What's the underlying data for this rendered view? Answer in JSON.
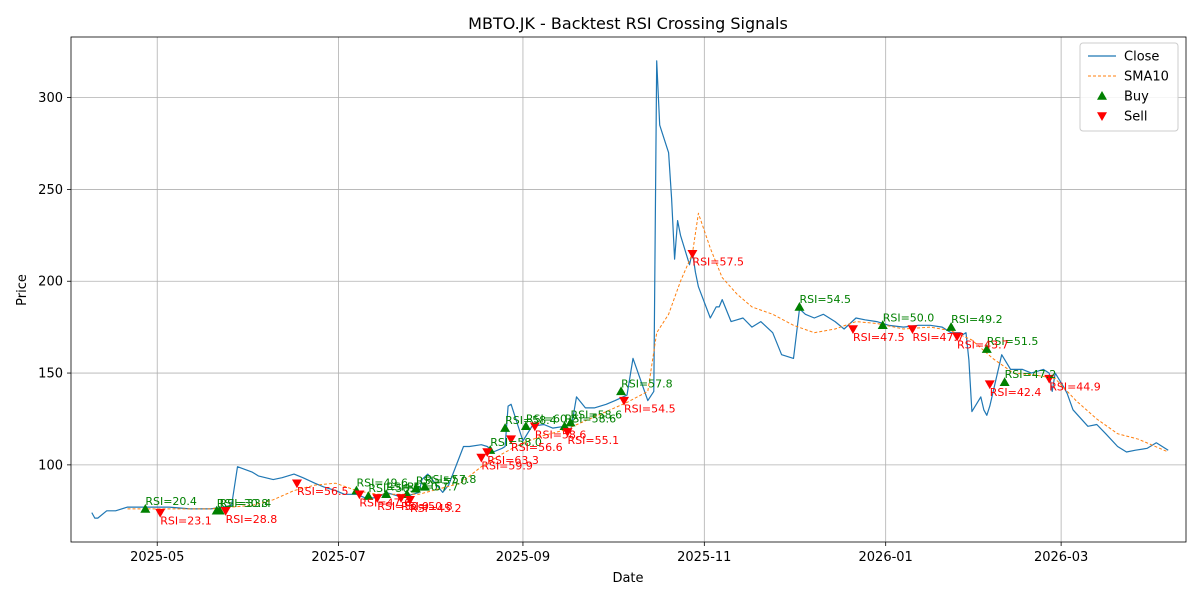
{
  "chart_data": {
    "type": "line",
    "title": "MBTO.JK - Backtest RSI Crossing Signals",
    "xlabel": "Date",
    "ylabel": "Price",
    "xlim": [
      "2025-04-02",
      "2026-04-12"
    ],
    "ylim": [
      58,
      333
    ],
    "grid": true,
    "legend_position": "top-right",
    "x_ticks": [
      "2025-05-01",
      "2025-07-01",
      "2025-09-01",
      "2025-11-01",
      "2026-01-01",
      "2026-03-01"
    ],
    "x_tick_labels": [
      "2025-05",
      "2025-07",
      "2025-09",
      "2025-11",
      "2026-01",
      "2026-03"
    ],
    "y_ticks": [
      100,
      150,
      200,
      250,
      300
    ],
    "y_tick_labels": [
      "100",
      "150",
      "200",
      "250",
      "300"
    ],
    "colors": {
      "close": "#1f77b4",
      "sma": "#ff7f0e",
      "buy": "#008000",
      "sell": "#ff0000"
    },
    "series": [
      {
        "name": "Close",
        "x": [
          "2025-04-09",
          "2025-04-10",
          "2025-04-11",
          "2025-04-14",
          "2025-04-17",
          "2025-04-21",
          "2025-04-28",
          "2025-05-05",
          "2025-05-12",
          "2025-05-19",
          "2025-05-23",
          "2025-05-26",
          "2025-05-28",
          "2025-06-02",
          "2025-06-04",
          "2025-06-09",
          "2025-06-12",
          "2025-06-16",
          "2025-06-19",
          "2025-06-23",
          "2025-06-26",
          "2025-06-30",
          "2025-07-03",
          "2025-07-07",
          "2025-07-10",
          "2025-07-14",
          "2025-07-17",
          "2025-07-21",
          "2025-07-24",
          "2025-07-28",
          "2025-07-29",
          "2025-07-31",
          "2025-08-04",
          "2025-08-05",
          "2025-08-07",
          "2025-08-12",
          "2025-08-14",
          "2025-08-18",
          "2025-08-20",
          "2025-08-22",
          "2025-08-25",
          "2025-08-26",
          "2025-08-27",
          "2025-08-28",
          "2025-09-01",
          "2025-09-04",
          "2025-09-08",
          "2025-09-11",
          "2025-09-15",
          "2025-09-17",
          "2025-09-19",
          "2025-09-22",
          "2025-09-25",
          "2025-09-29",
          "2025-10-02",
          "2025-10-06",
          "2025-10-08",
          "2025-10-13",
          "2025-10-15",
          "2025-10-16",
          "2025-10-17",
          "2025-10-20",
          "2025-10-21",
          "2025-10-22",
          "2025-10-23",
          "2025-10-24",
          "2025-10-27",
          "2025-10-28",
          "2025-10-29",
          "2025-10-30",
          "2025-11-03",
          "2025-11-05",
          "2025-11-06",
          "2025-11-07",
          "2025-11-10",
          "2025-11-12",
          "2025-11-14",
          "2025-11-17",
          "2025-11-20",
          "2025-11-24",
          "2025-11-27",
          "2025-12-01",
          "2025-12-03",
          "2025-12-05",
          "2025-12-08",
          "2025-12-11",
          "2025-12-15",
          "2025-12-18",
          "2025-12-22",
          "2025-12-25",
          "2025-12-29",
          "2026-01-02",
          "2026-01-07",
          "2026-01-12",
          "2026-01-16",
          "2026-01-20",
          "2026-01-23",
          "2026-01-26",
          "2026-01-27",
          "2026-01-28",
          "2026-01-29",
          "2026-01-30",
          "2026-02-02",
          "2026-02-03",
          "2026-02-04",
          "2026-02-05",
          "2026-02-09",
          "2026-02-12",
          "2026-02-16",
          "2026-02-19",
          "2026-02-23",
          "2026-02-25",
          "2026-02-26",
          "2026-02-27",
          "2026-03-02",
          "2026-03-03",
          "2026-03-05",
          "2026-03-10",
          "2026-03-13",
          "2026-03-16",
          "2026-03-20",
          "2026-03-23",
          "2026-03-26",
          "2026-03-30",
          "2026-04-02",
          "2026-04-06"
        ],
        "values": [
          74,
          71,
          71,
          75,
          75,
          77,
          77,
          77,
          76,
          76,
          77,
          78,
          99,
          96,
          94,
          92,
          93,
          95,
          93,
          90,
          88,
          86,
          84,
          84,
          82,
          82,
          85,
          83,
          83,
          85,
          92,
          95,
          87,
          85,
          89,
          110,
          110,
          111,
          110,
          107,
          109,
          110,
          132,
          133,
          113,
          121,
          122,
          120,
          121,
          118,
          137,
          131,
          131,
          133,
          135,
          138,
          158,
          135,
          140,
          320,
          285,
          270,
          245,
          212,
          233,
          225,
          209,
          216,
          205,
          197,
          180,
          186,
          186,
          190,
          178,
          179,
          180,
          175,
          178,
          172,
          160,
          158,
          185,
          182,
          180,
          182,
          178,
          174,
          180,
          179,
          178,
          176,
          175,
          176,
          176,
          175,
          172,
          172,
          171,
          172,
          157,
          129,
          137,
          130,
          127,
          132,
          160,
          152,
          152,
          150,
          152,
          150,
          140,
          150,
          142,
          139,
          130,
          121,
          122,
          117,
          110,
          107,
          108,
          109,
          112,
          108
        ],
        "style": "solid"
      },
      {
        "name": "SMA10",
        "x": [
          "2025-04-21",
          "2025-05-05",
          "2025-05-19",
          "2025-06-02",
          "2025-06-09",
          "2025-06-16",
          "2025-06-23",
          "2025-06-30",
          "2025-07-07",
          "2025-07-14",
          "2025-07-21",
          "2025-07-28",
          "2025-08-04",
          "2025-08-11",
          "2025-08-18",
          "2025-08-25",
          "2025-09-01",
          "2025-09-08",
          "2025-09-15",
          "2025-09-22",
          "2025-09-29",
          "2025-10-06",
          "2025-10-13",
          "2025-10-16",
          "2025-10-20",
          "2025-10-24",
          "2025-10-28",
          "2025-10-30",
          "2025-11-03",
          "2025-11-07",
          "2025-11-12",
          "2025-11-17",
          "2025-11-24",
          "2025-12-01",
          "2025-12-08",
          "2025-12-15",
          "2025-12-22",
          "2025-12-29",
          "2026-01-07",
          "2026-01-16",
          "2026-01-23",
          "2026-01-30",
          "2026-02-06",
          "2026-02-13",
          "2026-02-20",
          "2026-02-27",
          "2026-03-06",
          "2026-03-13",
          "2026-03-20",
          "2026-03-27",
          "2026-04-06"
        ],
        "values": [
          76,
          76,
          76,
          78,
          81,
          86,
          89,
          90,
          86,
          84,
          84,
          84,
          87,
          90,
          99,
          106,
          112,
          116,
          119,
          124,
          129,
          134,
          140,
          172,
          182,
          200,
          215,
          237,
          218,
          202,
          193,
          186,
          182,
          176,
          172,
          174,
          178,
          177,
          174,
          175,
          173,
          168,
          158,
          150,
          149,
          147,
          135,
          125,
          117,
          114,
          107
        ],
        "style": "dashed"
      }
    ],
    "buy_signals": [
      {
        "x": "2025-04-27",
        "y": 76,
        "label": "RSI=20.4"
      },
      {
        "x": "2025-05-21",
        "y": 75,
        "label": "RSI=30.8"
      },
      {
        "x": "2025-05-22",
        "y": 75,
        "label": "RSI=33.4"
      },
      {
        "x": "2025-07-07",
        "y": 86,
        "label": "RSI=49.6"
      },
      {
        "x": "2025-07-11",
        "y": 83,
        "label": "RSI=56.6"
      },
      {
        "x": "2025-07-17",
        "y": 84,
        "label": "RSI=57.0"
      },
      {
        "x": "2025-07-24",
        "y": 84,
        "label": "RSI=57.7"
      },
      {
        "x": "2025-07-27",
        "y": 87,
        "label": "RSI=57.0"
      },
      {
        "x": "2025-07-30",
        "y": 88,
        "label": "RSI=57.8"
      },
      {
        "x": "2025-08-21",
        "y": 108,
        "label": "RSI=58.0"
      },
      {
        "x": "2025-08-26",
        "y": 120,
        "label": "RSI=58.4"
      },
      {
        "x": "2025-09-02",
        "y": 121,
        "label": "RSI=60.2"
      },
      {
        "x": "2025-09-15",
        "y": 121,
        "label": "RSI=58.6"
      },
      {
        "x": "2025-09-17",
        "y": 123,
        "label": "RSI=58.6"
      },
      {
        "x": "2025-10-04",
        "y": 140,
        "label": "RSI=57.8"
      },
      {
        "x": "2025-12-03",
        "y": 186,
        "label": "RSI=54.5"
      },
      {
        "x": "2025-12-31",
        "y": 176,
        "label": "RSI=50.0"
      },
      {
        "x": "2026-01-23",
        "y": 175,
        "label": "RSI=49.2"
      },
      {
        "x": "2026-02-04",
        "y": 163,
        "label": "RSI=51.5"
      },
      {
        "x": "2026-02-10",
        "y": 145,
        "label": "RSI=47.2"
      }
    ],
    "sell_signals": [
      {
        "x": "2025-05-02",
        "y": 74,
        "label": "RSI=23.1"
      },
      {
        "x": "2025-05-24",
        "y": 75,
        "label": "RSI=28.8"
      },
      {
        "x": "2025-06-17",
        "y": 90,
        "label": "RSI=56.5"
      },
      {
        "x": "2025-07-08",
        "y": 84,
        "label": "RSI=47.6"
      },
      {
        "x": "2025-07-14",
        "y": 82,
        "label": "RSI=50.0"
      },
      {
        "x": "2025-07-22",
        "y": 82,
        "label": "RSI=50.8"
      },
      {
        "x": "2025-07-25",
        "y": 81,
        "label": "RSI=45.2"
      },
      {
        "x": "2025-08-18",
        "y": 104,
        "label": "RSI=59.9"
      },
      {
        "x": "2025-08-20",
        "y": 107,
        "label": "RSI=63.3"
      },
      {
        "x": "2025-08-28",
        "y": 114,
        "label": "RSI=56.6"
      },
      {
        "x": "2025-09-05",
        "y": 121,
        "label": "RSI=58.6"
      },
      {
        "x": "2025-09-16",
        "y": 118,
        "label": "RSI=55.1"
      },
      {
        "x": "2025-10-05",
        "y": 135,
        "label": "RSI=54.5"
      },
      {
        "x": "2025-10-28",
        "y": 215,
        "label": "RSI=57.5"
      },
      {
        "x": "2025-12-21",
        "y": 174,
        "label": "RSI=47.5"
      },
      {
        "x": "2026-01-10",
        "y": 174,
        "label": "RSI=47.7"
      },
      {
        "x": "2026-01-25",
        "y": 170,
        "label": "RSI=43.7"
      },
      {
        "x": "2026-02-05",
        "y": 144,
        "label": "RSI=42.4"
      },
      {
        "x": "2026-02-25",
        "y": 147,
        "label": "RSI=44.9"
      }
    ],
    "legend": [
      {
        "name": "Close",
        "kind": "line"
      },
      {
        "name": "SMA10",
        "kind": "dashed"
      },
      {
        "name": "Buy",
        "kind": "buy-marker"
      },
      {
        "name": "Sell",
        "kind": "sell-marker"
      }
    ]
  }
}
